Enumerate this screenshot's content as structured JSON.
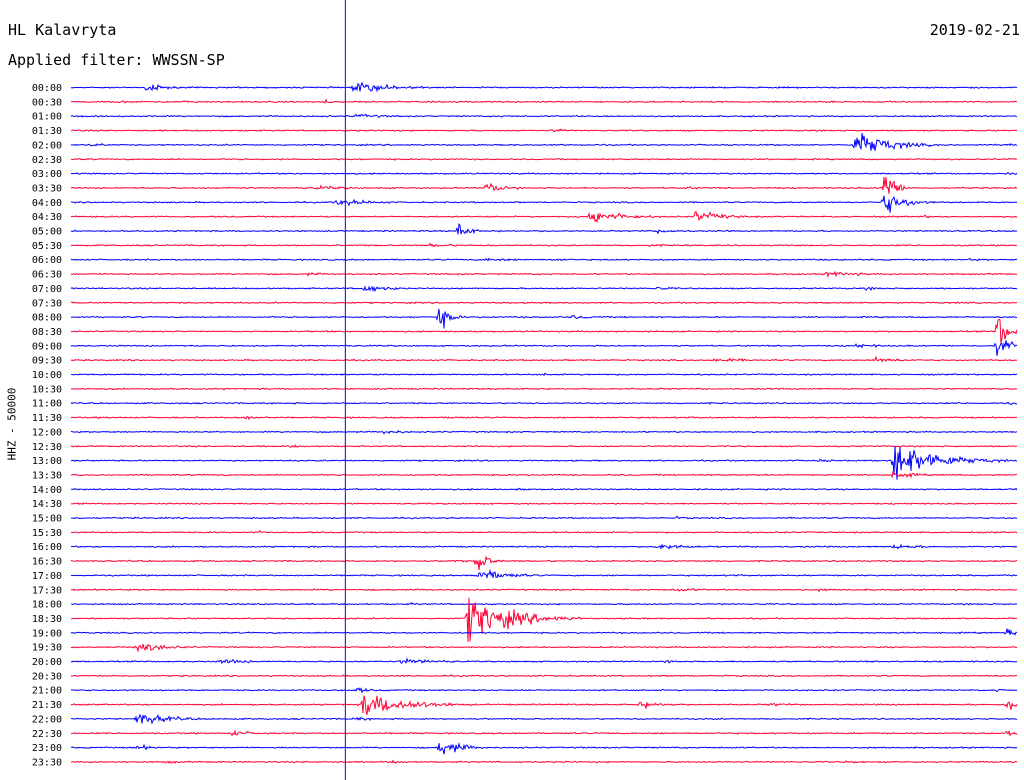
{
  "header": {
    "station": "HL Kalavryta",
    "filter": "Applied filter: WWSSN-SP",
    "date": "2019-02-21"
  },
  "chart_data": {
    "type": "line",
    "title": "HL Kalavryta",
    "subtitle": "Applied filter: WWSSN-SP",
    "ylabel": "HHZ - 50000",
    "row_labels": [
      "00:00",
      "00:30",
      "01:00",
      "01:30",
      "02:00",
      "02:30",
      "03:00",
      "03:30",
      "04:00",
      "04:30",
      "05:00",
      "05:30",
      "06:00",
      "06:30",
      "07:00",
      "07:30",
      "08:00",
      "08:30",
      "09:00",
      "09:30",
      "10:00",
      "10:30",
      "11:00",
      "11:30",
      "12:00",
      "12:30",
      "13:00",
      "13:30",
      "14:00",
      "14:30",
      "15:00",
      "15:30",
      "16:00",
      "16:30",
      "17:00",
      "17:30",
      "18:00",
      "18:30",
      "19:00",
      "19:30",
      "20:00",
      "20:30",
      "21:00",
      "21:30",
      "22:00",
      "22:30",
      "23:00",
      "23:30"
    ],
    "row_minutes": 30,
    "colors": [
      "#0000ff",
      "#ff0033"
    ],
    "time_marker_fraction": 0.29,
    "events": [
      [
        0,
        0.08,
        6,
        0.02
      ],
      [
        0,
        0.3,
        8,
        0.04
      ],
      [
        1,
        0.05,
        2,
        0.03
      ],
      [
        1,
        0.12,
        2,
        0.02
      ],
      [
        1,
        0.27,
        6,
        0.004
      ],
      [
        2,
        0.3,
        3,
        0.04
      ],
      [
        2,
        0.45,
        2,
        0.02
      ],
      [
        3,
        0.51,
        3,
        0.02
      ],
      [
        4,
        0.02,
        3,
        0.02
      ],
      [
        4,
        0.83,
        22,
        0.03
      ],
      [
        4,
        0.99,
        4,
        0.02
      ],
      [
        6,
        0.99,
        2,
        0.02
      ],
      [
        7,
        0.26,
        3,
        0.04
      ],
      [
        7,
        0.44,
        8,
        0.02
      ],
      [
        7,
        0.65,
        2,
        0.02
      ],
      [
        7,
        0.86,
        30,
        0.01
      ],
      [
        8,
        0.28,
        5,
        0.04
      ],
      [
        8,
        0.86,
        18,
        0.02
      ],
      [
        9,
        0.55,
        12,
        0.03
      ],
      [
        9,
        0.66,
        8,
        0.03
      ],
      [
        9,
        0.9,
        2,
        0.02
      ],
      [
        10,
        0.41,
        14,
        0.01
      ],
      [
        10,
        0.62,
        3,
        0.03
      ],
      [
        11,
        0.38,
        3,
        0.03
      ],
      [
        11,
        0.61,
        2,
        0.03
      ],
      [
        12,
        0.44,
        3,
        0.03
      ],
      [
        12,
        0.51,
        2,
        0.03
      ],
      [
        12,
        0.95,
        2,
        0.02
      ],
      [
        13,
        0.8,
        4,
        0.04
      ],
      [
        13,
        0.25,
        2,
        0.03
      ],
      [
        14,
        0.31,
        5,
        0.03
      ],
      [
        14,
        0.62,
        3,
        0.02
      ],
      [
        14,
        0.84,
        2,
        0.03
      ],
      [
        15,
        0.28,
        2,
        0.03
      ],
      [
        16,
        0.39,
        18,
        0.01
      ],
      [
        16,
        0.53,
        3,
        0.03
      ],
      [
        17,
        0.98,
        30,
        0.01
      ],
      [
        18,
        0.83,
        3,
        0.03
      ],
      [
        18,
        0.98,
        25,
        0.01
      ],
      [
        19,
        0.68,
        4,
        0.03
      ],
      [
        19,
        0.85,
        4,
        0.03
      ],
      [
        20,
        0.5,
        2,
        0.02
      ],
      [
        22,
        0.99,
        2,
        0.02
      ],
      [
        23,
        0.18,
        3,
        0.03
      ],
      [
        23,
        0.4,
        2,
        0.03
      ],
      [
        23,
        0.65,
        2,
        0.03
      ],
      [
        24,
        0.33,
        3,
        0.03
      ],
      [
        25,
        0.23,
        2,
        0.03
      ],
      [
        26,
        0.87,
        30,
        0.04
      ],
      [
        26,
        0.79,
        2,
        0.03
      ],
      [
        27,
        0.87,
        6,
        0.02
      ],
      [
        28,
        0.47,
        2,
        0.02
      ],
      [
        30,
        0.64,
        2,
        0.02
      ],
      [
        31,
        0.2,
        3,
        0.004
      ],
      [
        32,
        0.62,
        5,
        0.03
      ],
      [
        32,
        0.87,
        4,
        0.03
      ],
      [
        33,
        0.4,
        2,
        0.03
      ],
      [
        33,
        0.43,
        18,
        0.01
      ],
      [
        34,
        0.43,
        10,
        0.03
      ],
      [
        34,
        0.7,
        2,
        0.03
      ],
      [
        35,
        0.64,
        3,
        0.03
      ],
      [
        35,
        0.79,
        2,
        0.03
      ],
      [
        36,
        0.2,
        2,
        0.02
      ],
      [
        36,
        0.36,
        2,
        0.02
      ],
      [
        37,
        0.42,
        35,
        0.04
      ],
      [
        38,
        0.99,
        7,
        0.01
      ],
      [
        39,
        0.07,
        8,
        0.03
      ],
      [
        40,
        0.16,
        4,
        0.03
      ],
      [
        40,
        0.35,
        4,
        0.05
      ],
      [
        40,
        0.63,
        3,
        0.02
      ],
      [
        42,
        0.3,
        4,
        0.02
      ],
      [
        42,
        0.98,
        3,
        0.01
      ],
      [
        43,
        0.31,
        20,
        0.04
      ],
      [
        43,
        0.6,
        5,
        0.03
      ],
      [
        43,
        0.74,
        3,
        0.02
      ],
      [
        43,
        0.99,
        12,
        0.02
      ],
      [
        44,
        0.07,
        10,
        0.03
      ],
      [
        44,
        0.3,
        3,
        0.02
      ],
      [
        45,
        0.17,
        4,
        0.03
      ],
      [
        45,
        0.99,
        4,
        0.02
      ],
      [
        46,
        0.07,
        4,
        0.02
      ],
      [
        46,
        0.39,
        14,
        0.02
      ],
      [
        47,
        0.1,
        2,
        0.03
      ],
      [
        47,
        0.34,
        2,
        0.03
      ],
      [
        47,
        0.82,
        2,
        0.03
      ]
    ]
  }
}
